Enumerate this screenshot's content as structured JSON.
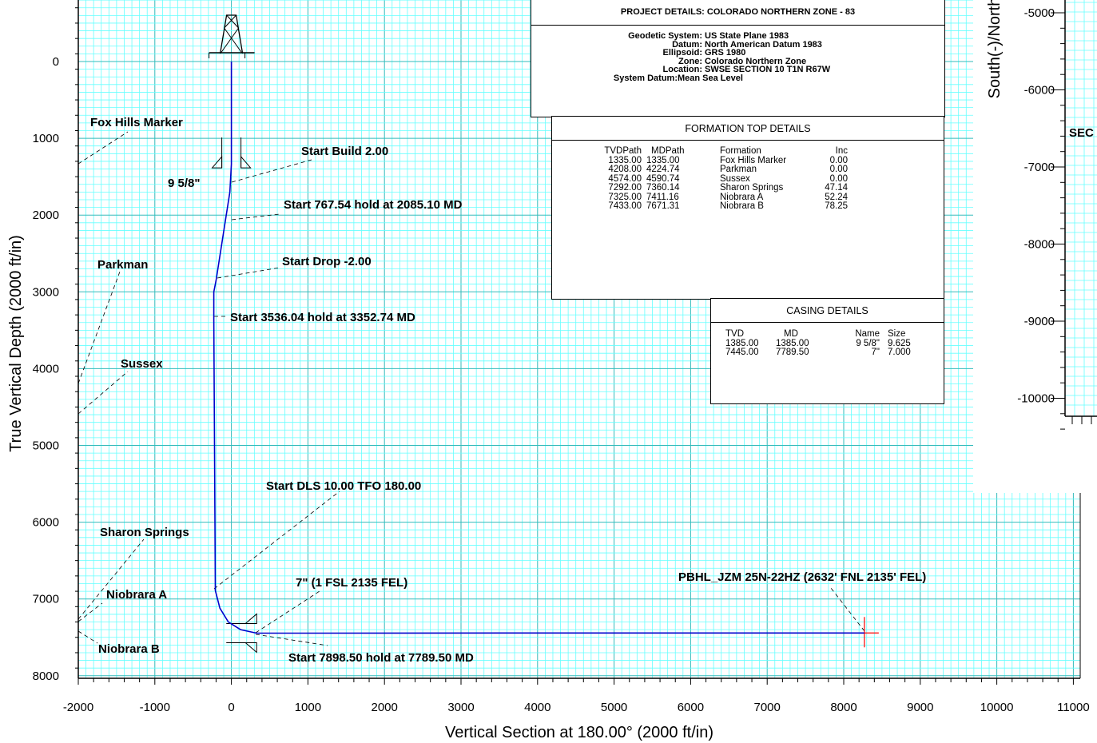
{
  "chart_data": [
    {
      "type": "line",
      "title": "",
      "xlabel": "Vertical Section at 180.00° (2000 ft/in)",
      "ylabel": "True Vertical Depth (2000 ft/in)",
      "xlim": [
        -2000,
        11000
      ],
      "ylim": [
        8000,
        0
      ],
      "x_ticks": [
        "-2000",
        "-1000",
        "0",
        "1000",
        "2000",
        "3000",
        "4000",
        "5000",
        "6000",
        "7000",
        "8000",
        "9000",
        "10000",
        "11000"
      ],
      "y_ticks": [
        "0",
        "1000",
        "2000",
        "3000",
        "4000",
        "5000",
        "6000",
        "7000",
        "8000"
      ],
      "grid": true,
      "series": [
        {
          "color": "#0000cc",
          "x": [
            0,
            0,
            -20,
            -80,
            -200,
            -230,
            -230,
            -210,
            -150,
            -40,
            120,
            330,
            1000,
            4000,
            8270
          ],
          "y": [
            0,
            1335,
            1700,
            2085,
            2853,
            3000,
            3353,
            6890,
            7120,
            7300,
            7400,
            7445,
            7445,
            7443,
            7443
          ]
        }
      ],
      "annotations": [
        {
          "text": "Fox Hills Marker",
          "x": -1850,
          "y": 800
        },
        {
          "text": "Start Build 2.00",
          "x": 910,
          "y": 1200
        },
        {
          "text": "9 5/8\"",
          "x": -830,
          "y": 1620
        },
        {
          "text": "Start 767.54 hold at 2085.10 MD",
          "x": 680,
          "y": 1920
        },
        {
          "text": "Parkman",
          "x": -1750,
          "y": 2690
        },
        {
          "text": "Start Drop -2.00",
          "x": 660,
          "y": 2660
        },
        {
          "text": "Start 3536.04 hold at 3352.74 MD",
          "x": 0,
          "y": 3330
        },
        {
          "text": "Sussex",
          "x": -1430,
          "y": 3990
        },
        {
          "text": "Start DLS 10.00 TFO 180.00",
          "x": 450,
          "y": 5540
        },
        {
          "text": "Sharon Springs",
          "x": -1730,
          "y": 6150
        },
        {
          "text": "7\" (1 FSL 2135 FEL)",
          "x": 860,
          "y": 6830
        },
        {
          "text": "PBHL_JZM 25N-22HZ (2632' FNL 2135' FEL)",
          "x": 5930,
          "y": 6790
        },
        {
          "text": "Niobrara A",
          "x": -1640,
          "y": 6960
        },
        {
          "text": "Niobrara B",
          "x": -1740,
          "y": 7660
        },
        {
          "text": "Start 7898.50 hold at 7789.50 MD",
          "x": 750,
          "y": 7780
        }
      ]
    },
    {
      "type": "line",
      "partial": true,
      "ylabel": "South(-)/North",
      "y_ticks": [
        "-5000",
        "-6000",
        "-7000",
        "-8000",
        "-9000",
        "-10000"
      ],
      "annotations": [
        {
          "text": "SEC"
        }
      ]
    }
  ],
  "colors": {
    "grid": "#66ffff",
    "grid_major": "#33bbbb",
    "path": "#0000cc",
    "target": "#ff0000"
  },
  "project": {
    "title": "PROJECT DETAILS: COLORADO NORTHERN ZONE - 83",
    "rows": [
      {
        "k": "Geodetic System:",
        "v": "US State Plane 1983"
      },
      {
        "k": "Datum:",
        "v": "North American Datum 1983"
      },
      {
        "k": "Ellipsoid:",
        "v": "GRS 1980"
      },
      {
        "k": "Zone:",
        "v": "Colorado Northern Zone"
      },
      {
        "k": "Location:",
        "v": "SWSE SECTION 10 T1N R67W"
      },
      {
        "k": "System Datum:",
        "v": "Mean Sea Level"
      }
    ]
  },
  "formations": {
    "title": "FORMATION TOP DETAILS",
    "headers": [
      "TVDPath",
      "MDPath",
      "Formation",
      "Inc"
    ],
    "rows": [
      [
        "1335.00",
        "1335.00",
        "Fox Hills Marker",
        "0.00"
      ],
      [
        "4208.00",
        "4224.74",
        "Parkman",
        "0.00"
      ],
      [
        "4574.00",
        "4590.74",
        "Sussex",
        "0.00"
      ],
      [
        "7292.00",
        "7360.14",
        "Sharon Springs",
        "47.14"
      ],
      [
        "7325.00",
        "7411.16",
        "Niobrara A",
        "52.24"
      ],
      [
        "7433.00",
        "7671.31",
        "Niobrara B",
        "78.25"
      ]
    ]
  },
  "casing": {
    "title": "CASING DETAILS",
    "headers": [
      "TVD",
      "MD",
      "Name",
      "Size"
    ],
    "rows": [
      [
        "1385.00",
        "1385.00",
        "9 5/8\"",
        "9.625"
      ],
      [
        "7445.00",
        "7789.50",
        "7\"",
        "7.000"
      ]
    ]
  }
}
